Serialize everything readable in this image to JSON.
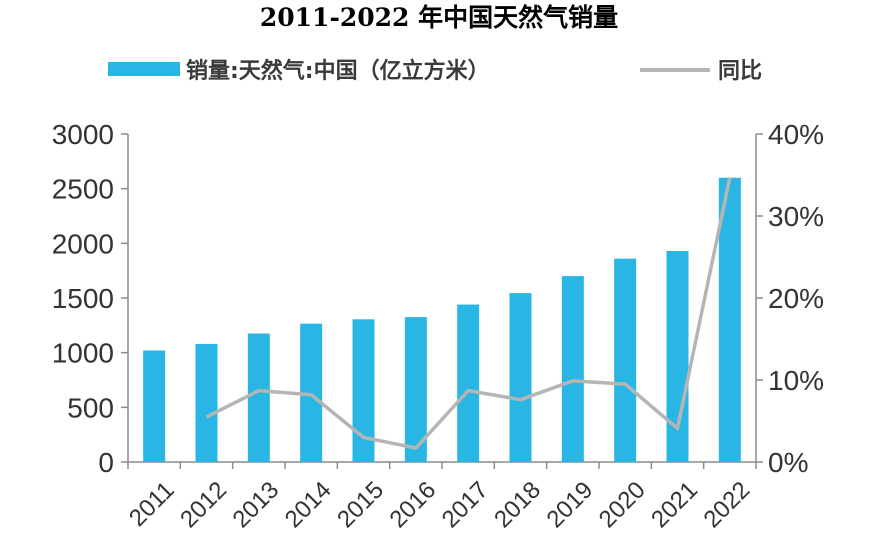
{
  "chart_data": {
    "type": "bar",
    "title": "2011-2022 年中国天然气销量",
    "categories": [
      "2011",
      "2012",
      "2013",
      "2014",
      "2015",
      "2016",
      "2017",
      "2018",
      "2019",
      "2020",
      "2021",
      "2022"
    ],
    "series": [
      {
        "name": "销量:天然气:中国（亿立方米）",
        "type": "bar",
        "axis": "left",
        "color": "#29b6e4",
        "values": [
          1020,
          1080,
          1175,
          1265,
          1305,
          1325,
          1440,
          1545,
          1700,
          1860,
          1930,
          2600
        ]
      },
      {
        "name": "同比",
        "type": "line",
        "axis": "right",
        "color": "#b5b5b5",
        "values": [
          null,
          5.5,
          8.7,
          8.2,
          3.0,
          1.7,
          8.7,
          7.6,
          9.9,
          9.5,
          4.1,
          34.7
        ]
      }
    ],
    "y_left": {
      "ylim": [
        0,
        3000
      ],
      "ticks": [
        "0",
        "500",
        "1000",
        "1500",
        "2000",
        "2500",
        "3000"
      ]
    },
    "y_right": {
      "ylim": [
        0,
        40
      ],
      "ticks": [
        "0%",
        "10%",
        "20%",
        "30%",
        "40%"
      ]
    },
    "grid": false,
    "legend_position": "top"
  }
}
